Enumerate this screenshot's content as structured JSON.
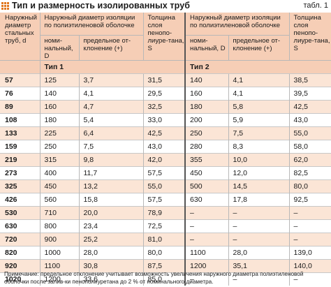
{
  "title": "Тип и размерность изолированных труб",
  "table_no": "табл. 1",
  "headers": {
    "pipe_diameter": "Наружный диаметр стальных труб, d",
    "type1_shell": "Наружный диаметр изоляции по полиэтиленовой оболочке",
    "nominal": "номи-нальный, D",
    "tolerance": "предельное от-клонение (+)",
    "thickness": "Толщина слоя пенопо-лиуре-тана, S",
    "type2_shell": "Наружный диаметр изоляции по полиэтиленовой оболочке",
    "nominal2": "номи-нальный, D",
    "tolerance2": "предельное от-клонение (+)",
    "thickness2": "Толщина слоя пенопо-лиуре-тана, S",
    "type1": "Тип 1",
    "type2": "Тип 2"
  },
  "rows": [
    {
      "d": "57",
      "d1": "125",
      "t1": "3,7",
      "s1": "31,5",
      "d2": "140",
      "t2": "4,1",
      "s2": "38,5"
    },
    {
      "d": "76",
      "d1": "140",
      "t1": "4,1",
      "s1": "29,5",
      "d2": "160",
      "t2": "4,1",
      "s2": "39,5"
    },
    {
      "d": "89",
      "d1": "160",
      "t1": "4,7",
      "s1": "32,5",
      "d2": "180",
      "t2": "5,8",
      "s2": "42,5"
    },
    {
      "d": "108",
      "d1": "180",
      "t1": "5,4",
      "s1": "33,0",
      "d2": "200",
      "t2": "5,9",
      "s2": "43,0"
    },
    {
      "d": "133",
      "d1": "225",
      "t1": "6,4",
      "s1": "42,5",
      "d2": "250",
      "t2": "7,5",
      "s2": "55,0"
    },
    {
      "d": "159",
      "d1": "250",
      "t1": "7,5",
      "s1": "43,0",
      "d2": "280",
      "t2": "8,3",
      "s2": "58,0"
    },
    {
      "d": "219",
      "d1": "315",
      "t1": "9,8",
      "s1": "42,0",
      "d2": "355",
      "t2": "10,0",
      "s2": "62,0"
    },
    {
      "d": "273",
      "d1": "400",
      "t1": "11,7",
      "s1": "57,5",
      "d2": "450",
      "t2": "12,0",
      "s2": "82,5"
    },
    {
      "d": "325",
      "d1": "450",
      "t1": "13,2",
      "s1": "55,0",
      "d2": "500",
      "t2": "14,5",
      "s2": "80,0"
    },
    {
      "d": "426",
      "d1": "560",
      "t1": "15,8",
      "s1": "57,5",
      "d2": "630",
      "t2": "17,8",
      "s2": "92,5"
    },
    {
      "d": "530",
      "d1": "710",
      "t1": "20,0",
      "s1": "78,9",
      "d2": "–",
      "t2": "–",
      "s2": "–"
    },
    {
      "d": "630",
      "d1": "800",
      "t1": "23,4",
      "s1": "72,5",
      "d2": "–",
      "t2": "–",
      "s2": "–"
    },
    {
      "d": "720",
      "d1": "900",
      "t1": "25,2",
      "s1": "81,0",
      "d2": "–",
      "t2": "–",
      "s2": "–"
    },
    {
      "d": "820",
      "d1": "1000",
      "t1": "28,0",
      "s1": "80,0",
      "d2": "1100",
      "t2": "28,0",
      "s2": "139,0"
    },
    {
      "d": "920",
      "d1": "1100",
      "t1": "30,8",
      "s1": "87,5",
      "d2": "1200",
      "t2": "35,1",
      "s2": "140,0"
    },
    {
      "d": "1020",
      "d1": "1200",
      "t1": "33,6",
      "s1": "85,0",
      "d2": "–",
      "t2": "–",
      "s2": "–"
    }
  ],
  "note": "Примечание: предельное отклонение учитывает возможность увеличения наружного диаметра полиэтиленовой оболочки после залив-ки пенополиуретана до 2 % от номинального диаметра.",
  "colors": {
    "header_bg": "#f6ceb6",
    "alt_row": "#fbe5d6",
    "accent": "#e2781f"
  }
}
